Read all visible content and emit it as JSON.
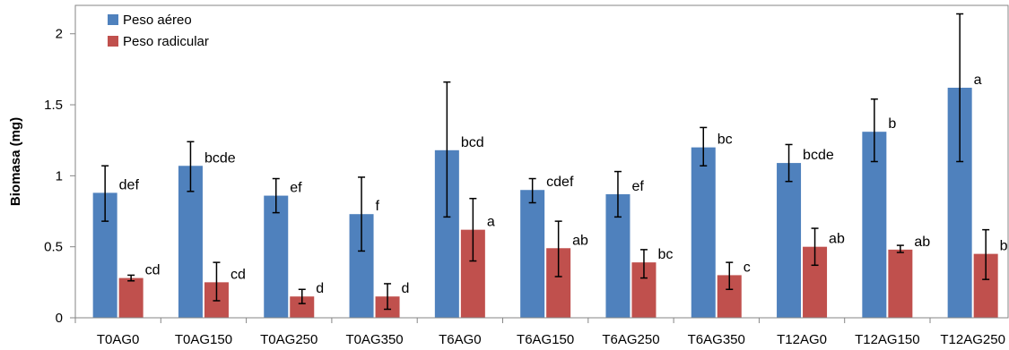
{
  "chart_data": {
    "type": "bar",
    "ylabel": "Biomasa (mg)",
    "ylim": [
      0,
      2.2
    ],
    "yticks": [
      0,
      0.5,
      1,
      1.5,
      2
    ],
    "ytick_labels": [
      "0",
      "0.5",
      "1",
      "1.5",
      "2"
    ],
    "grid": false,
    "legend_position": "top-left",
    "categories": [
      "T0AG0",
      "T0AG150",
      "T0AG250",
      "T0AG350",
      "T6AG0",
      "T6AG150",
      "T6AG250",
      "T6AG350",
      "T12AG0",
      "T12AG150",
      "T12AG250"
    ],
    "series": [
      {
        "name": "Peso aéreo",
        "color": "#4f81bd",
        "values": [
          0.88,
          1.07,
          0.86,
          0.73,
          1.18,
          0.9,
          0.87,
          1.2,
          1.09,
          1.31,
          1.62
        ],
        "error_low": [
          0.68,
          0.89,
          0.74,
          0.47,
          0.71,
          0.81,
          0.71,
          1.07,
          0.96,
          1.1,
          1.1
        ],
        "error_high": [
          1.07,
          1.24,
          0.98,
          0.99,
          1.66,
          0.98,
          1.03,
          1.34,
          1.22,
          1.54,
          2.14
        ],
        "labels": [
          "def",
          "bcde",
          "ef",
          "f",
          "bcd",
          "cdef",
          "ef",
          "bc",
          "bcde",
          "b",
          "a"
        ]
      },
      {
        "name": "Peso radicular",
        "color": "#c0504d",
        "values": [
          0.28,
          0.25,
          0.15,
          0.15,
          0.62,
          0.49,
          0.39,
          0.3,
          0.5,
          0.48,
          0.45
        ],
        "error_low": [
          0.26,
          0.12,
          0.1,
          0.06,
          0.4,
          0.29,
          0.28,
          0.2,
          0.37,
          0.46,
          0.27
        ],
        "error_high": [
          0.3,
          0.39,
          0.2,
          0.24,
          0.84,
          0.68,
          0.48,
          0.39,
          0.63,
          0.51,
          0.62
        ],
        "labels": [
          "cd",
          "cd",
          "d",
          "d",
          "a",
          "ab",
          "bc",
          "c",
          "ab",
          "ab",
          "b"
        ]
      }
    ]
  }
}
